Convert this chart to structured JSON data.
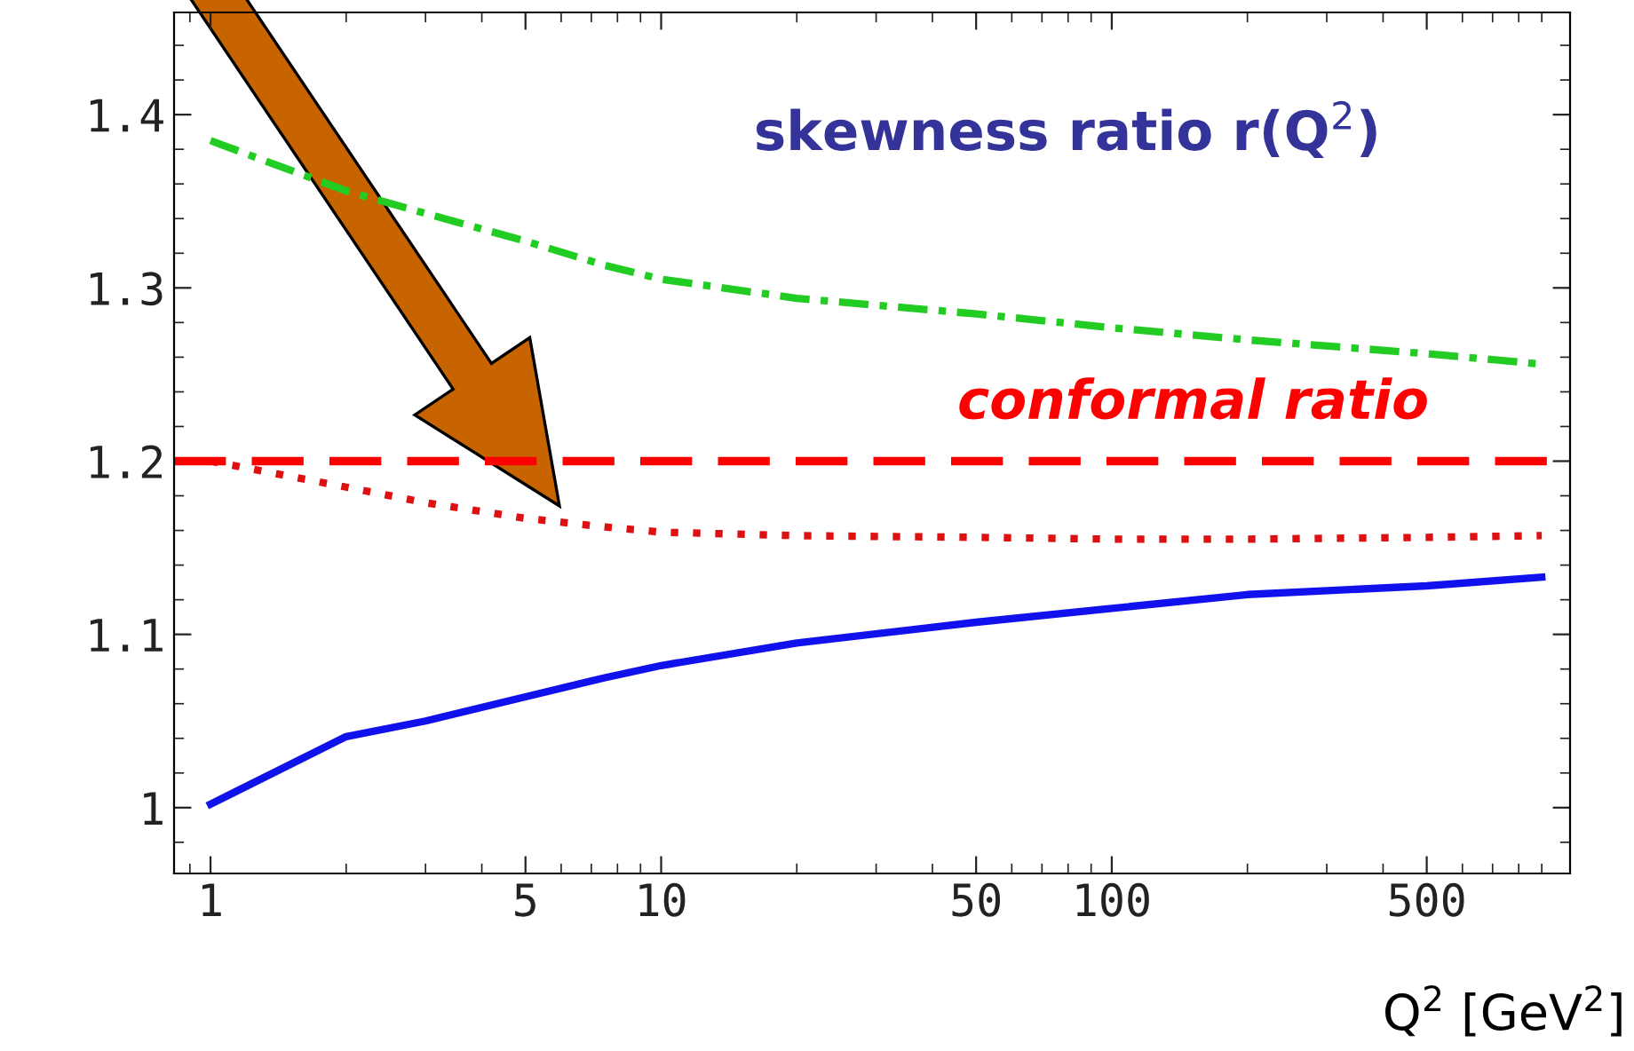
{
  "chart_data": {
    "type": "line",
    "xlabel": "Q$^{2}$ [GeV$^{2}$]",
    "x": [
      1,
      2,
      3,
      5,
      7.5,
      10,
      20,
      50,
      100,
      200,
      500,
      900
    ],
    "series": [
      {
        "color": "#22cc22",
        "line_style": "dashdot",
        "values": [
          1.385,
          1.356,
          1.343,
          1.327,
          1.313,
          1.305,
          1.294,
          1.285,
          1.277,
          1.27,
          1.262,
          1.256
        ]
      },
      {
        "color": "#dd1111",
        "line_style": "dotted",
        "values": [
          1.2,
          1.185,
          1.176,
          1.167,
          1.162,
          1.159,
          1.157,
          1.156,
          1.155,
          1.155,
          1.156,
          1.157
        ]
      },
      {
        "color": "#1111ee",
        "line_style": "solid",
        "values": [
          1.002,
          1.041,
          1.05,
          1.064,
          1.075,
          1.082,
          1.095,
          1.107,
          1.115,
          1.123,
          1.128,
          1.133
        ]
      }
    ],
    "ref_lines": [
      {
        "axis": "y",
        "value": 1.2,
        "label": "conformal ratio",
        "color": "#ff0000",
        "line_style": "dashed"
      }
    ],
    "annotations": [
      "skewness ratio r(Q$^{2}$)"
    ],
    "log": "x",
    "xlim": [
      0.83,
      1040
    ],
    "xticks": [
      1,
      5,
      10,
      50,
      100,
      500
    ],
    "ylim": [
      0.962,
      1.459
    ],
    "yticks": [
      1,
      1.1,
      1.2,
      1.3,
      1.4
    ],
    "grid": false,
    "legend": false,
    "marker": "none"
  }
}
